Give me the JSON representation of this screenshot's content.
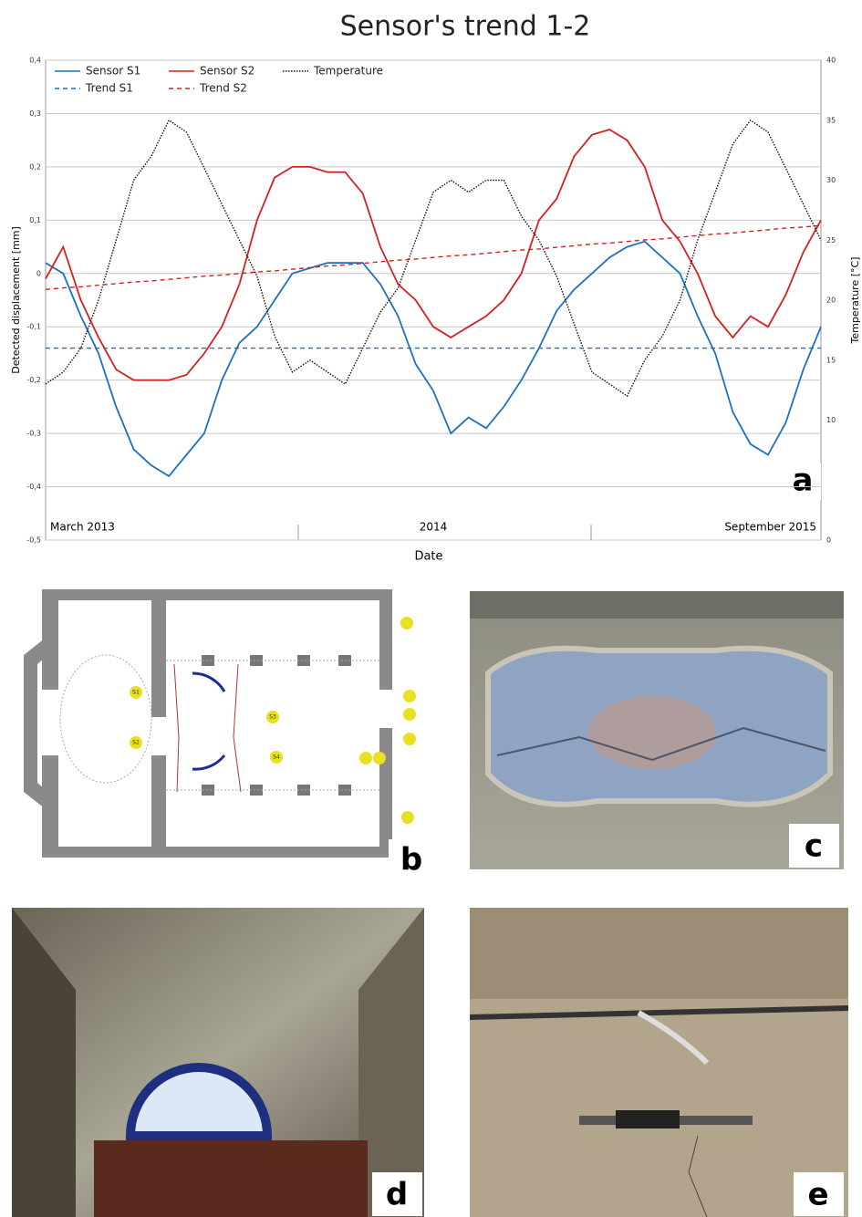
{
  "chart_data": {
    "type": "line",
    "title": "Sensor's trend 1-2",
    "panel_label": "a",
    "xlabel": "Date",
    "ylabel": "Detected displacement [mm]",
    "y2label": "Temperature [°C]",
    "categories": [
      "March 2013",
      null,
      null,
      null,
      null,
      null,
      null,
      null,
      null,
      null,
      null,
      null,
      null,
      null,
      null,
      null,
      null,
      null,
      null,
      null,
      null,
      null,
      "2014",
      null,
      null,
      null,
      null,
      null,
      null,
      null,
      null,
      null,
      null,
      null,
      null,
      null,
      null,
      null,
      null,
      null,
      null,
      null,
      null,
      null,
      "September 2015"
    ],
    "ylim": [
      -0.5,
      0.4
    ],
    "yticks": [
      {
        "value": -0.5,
        "label": "-0,5"
      },
      {
        "value": -0.4,
        "label": "-0,4"
      },
      {
        "value": -0.3,
        "label": "-0,3"
      },
      {
        "value": -0.2,
        "label": "-0,2"
      },
      {
        "value": -0.1,
        "label": "-0,1"
      },
      0,
      {
        "value": 0.1,
        "label": "0,1"
      },
      {
        "value": 0.2,
        "label": "0,2"
      },
      {
        "value": 0.3,
        "label": "0,3"
      },
      {
        "value": 0.4,
        "label": "0,4"
      }
    ],
    "y2lim": [
      0,
      40
    ],
    "y2ticks": [
      0,
      10,
      15,
      20,
      25,
      30,
      35,
      40
    ],
    "grid": true,
    "legend": "upper left",
    "series": [
      {
        "name": "Sensor S1",
        "color": "#1f6fc0",
        "style": "solid",
        "values": [
          0.02,
          0.0,
          -0.08,
          -0.15,
          -0.25,
          -0.33,
          -0.36,
          -0.38,
          -0.34,
          -0.3,
          -0.2,
          -0.13,
          -0.1,
          -0.05,
          0.0,
          0.01,
          0.02,
          0.02,
          0.02,
          -0.02,
          -0.08,
          -0.17,
          -0.22,
          -0.3,
          -0.27,
          -0.29,
          -0.25,
          -0.2,
          -0.14,
          -0.07,
          -0.03,
          0.0,
          0.03,
          0.05,
          0.06,
          0.03,
          0.0,
          -0.08,
          -0.15,
          -0.26,
          -0.32,
          -0.34,
          -0.28,
          -0.18,
          -0.1
        ]
      },
      {
        "name": "Sensor S2",
        "color": "#d62020",
        "style": "solid",
        "values": [
          -0.01,
          0.05,
          -0.05,
          -0.12,
          -0.18,
          -0.2,
          -0.2,
          -0.2,
          -0.19,
          -0.15,
          -0.1,
          -0.02,
          0.1,
          0.18,
          0.2,
          0.2,
          0.19,
          0.19,
          0.15,
          0.05,
          -0.02,
          -0.05,
          -0.1,
          -0.12,
          -0.1,
          -0.08,
          -0.05,
          0.0,
          0.1,
          0.14,
          0.22,
          0.26,
          0.27,
          0.25,
          0.2,
          0.1,
          0.06,
          0.0,
          -0.08,
          -0.12,
          -0.08,
          -0.1,
          -0.04,
          0.04,
          0.1
        ]
      },
      {
        "name": "Temperature",
        "color": "#111111",
        "style": "dotted",
        "axis": "y2",
        "values": [
          13,
          14,
          16,
          20,
          25,
          30,
          32,
          35,
          34,
          31,
          28,
          25,
          22,
          17,
          14,
          15,
          14,
          13,
          16,
          19,
          21,
          25,
          29,
          30,
          29,
          30,
          30,
          27,
          25,
          22,
          18,
          14,
          13,
          12,
          15,
          17,
          20,
          25,
          29,
          33,
          35,
          34,
          31,
          28,
          25
        ]
      },
      {
        "name": "Trend S1",
        "color": "#1f6fc0",
        "style": "dashed",
        "values": [
          -0.14,
          -0.14,
          -0.14,
          -0.14,
          -0.14,
          -0.14,
          -0.14,
          -0.14,
          -0.14,
          -0.14,
          -0.14,
          -0.14,
          -0.14,
          -0.14,
          -0.14,
          -0.14,
          -0.14,
          -0.14,
          -0.14,
          -0.14,
          -0.14,
          -0.14,
          -0.14,
          -0.14,
          -0.14,
          -0.14,
          -0.14,
          -0.14,
          -0.14,
          -0.14,
          -0.14,
          -0.14,
          -0.14,
          -0.14,
          -0.14,
          -0.14,
          -0.14,
          -0.14,
          -0.14,
          -0.14,
          -0.14,
          -0.14,
          -0.14,
          -0.14,
          -0.14
        ]
      },
      {
        "name": "Trend S2",
        "color": "#d62020",
        "style": "dashed",
        "values": [
          -0.03,
          -0.027,
          -0.025,
          -0.022,
          -0.019,
          -0.016,
          -0.014,
          -0.011,
          -0.008,
          -0.005,
          -0.003,
          0.0,
          0.003,
          0.005,
          0.008,
          0.011,
          0.014,
          0.016,
          0.019,
          0.022,
          0.025,
          0.027,
          0.03,
          0.033,
          0.035,
          0.038,
          0.041,
          0.044,
          0.046,
          0.049,
          0.052,
          0.055,
          0.057,
          0.06,
          0.063,
          0.065,
          0.068,
          0.071,
          0.074,
          0.076,
          0.079,
          0.082,
          0.085,
          0.087,
          0.09
        ]
      }
    ]
  },
  "panels": {
    "floor_plan_label": "b",
    "fresco_label": "c",
    "window_label": "d",
    "sensor_label": "e",
    "sensors": [
      "S1",
      "S2",
      "S3",
      "S4"
    ]
  }
}
